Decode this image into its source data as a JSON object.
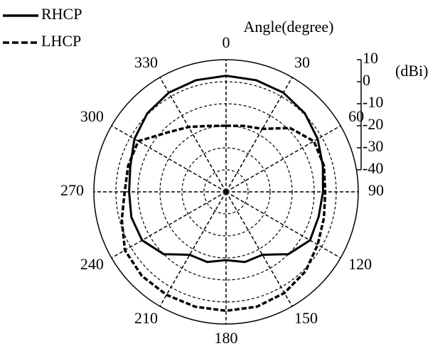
{
  "chart_data": {
    "type": "polar",
    "angle_label": "Angle(degree)",
    "radial_unit": "(dBi)",
    "theta": [
      0,
      15,
      30,
      45,
      60,
      75,
      90,
      105,
      120,
      135,
      150,
      165,
      180,
      195,
      210,
      225,
      240,
      255,
      270,
      285,
      300,
      315,
      330,
      345
    ],
    "thetaticks": [
      0,
      30,
      60,
      90,
      120,
      150,
      180,
      210,
      240,
      270,
      300,
      330
    ],
    "rlim": [
      -50,
      10
    ],
    "rticks": [
      10,
      0,
      -10,
      -20,
      -30,
      -40
    ],
    "grid": true,
    "legend": "upper left",
    "series": [
      {
        "name": "RHCP",
        "color": "#000000",
        "dash": "solid",
        "values": [
          2.7,
          2.5,
          2,
          0.5,
          -2,
          -4.5,
          -6,
          -6.5,
          -6,
          -10,
          -17,
          -17,
          -19,
          -17,
          -17,
          -10,
          -6,
          -5.5,
          -6,
          -5,
          -2,
          0.5,
          2,
          2.5
        ]
      },
      {
        "name": "LHCP",
        "color": "#000000",
        "dash": "dashed",
        "values": [
          -20,
          -19,
          -17,
          -9,
          -4,
          -4,
          -5,
          -4,
          -2,
          1,
          3,
          4,
          4,
          4,
          4,
          4,
          3,
          -1,
          -4,
          -4,
          -4,
          -12,
          -16,
          -19
        ]
      }
    ]
  }
}
